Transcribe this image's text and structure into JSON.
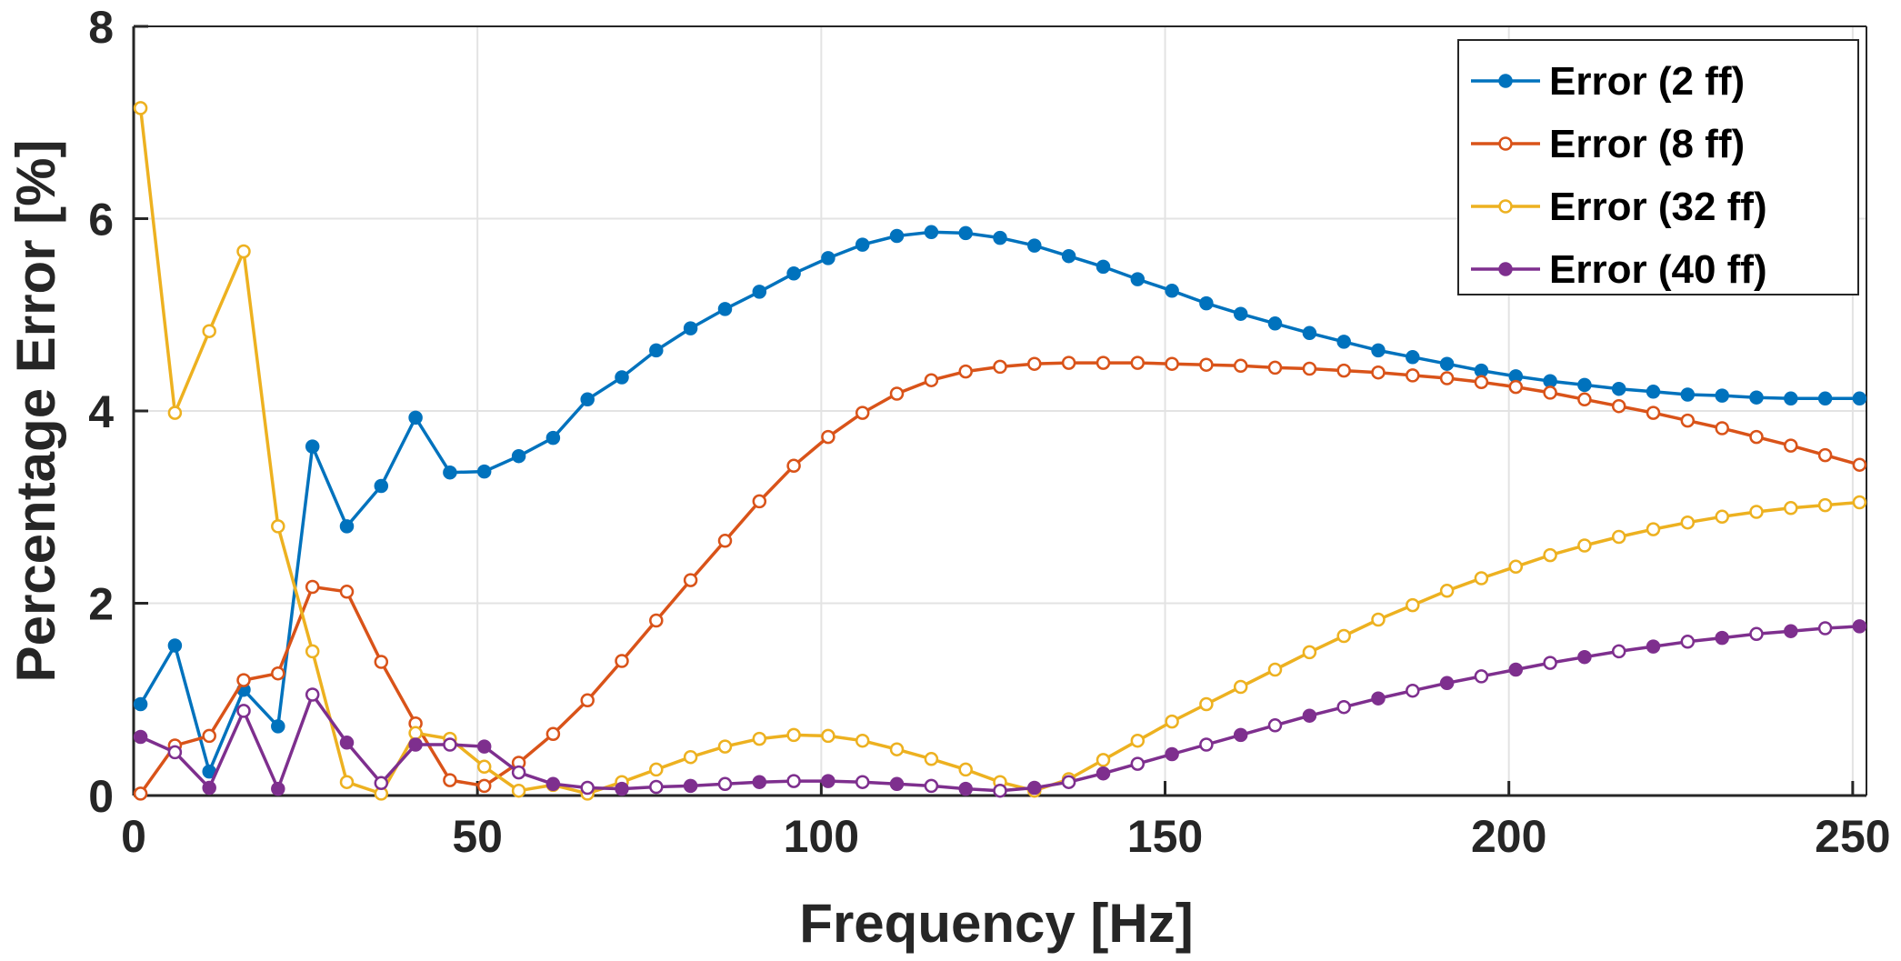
{
  "chart_data": {
    "type": "line",
    "xlabel": "Frequency [Hz]",
    "ylabel": "Percentage Error [%]",
    "xlim": [
      0,
      252
    ],
    "ylim": [
      0,
      8
    ],
    "xticks": [
      0,
      50,
      100,
      150,
      200,
      250
    ],
    "yticks": [
      0,
      2,
      4,
      6,
      8
    ],
    "grid": true,
    "legend_position": "top-right",
    "x": [
      1,
      6,
      11,
      16,
      21,
      26,
      31,
      36,
      41,
      46,
      51,
      56,
      61,
      66,
      71,
      76,
      81,
      86,
      91,
      96,
      101,
      106,
      111,
      116,
      121,
      126,
      131,
      136,
      141,
      146,
      151,
      156,
      161,
      166,
      171,
      176,
      181,
      186,
      191,
      196,
      201,
      206,
      211,
      216,
      221,
      226,
      231,
      236,
      241,
      246,
      251
    ],
    "series": [
      {
        "name": "Error (2 ff)",
        "color": "#0072BD",
        "marker": "filled",
        "values": [
          0.95,
          1.56,
          0.25,
          1.1,
          0.72,
          3.63,
          2.8,
          3.22,
          3.93,
          3.36,
          3.37,
          3.53,
          3.72,
          4.12,
          4.35,
          4.63,
          4.86,
          5.06,
          5.24,
          5.43,
          5.59,
          5.73,
          5.82,
          5.86,
          5.85,
          5.8,
          5.72,
          5.61,
          5.5,
          5.37,
          5.25,
          5.12,
          5.01,
          4.91,
          4.81,
          4.72,
          4.63,
          4.56,
          4.49,
          4.42,
          4.36,
          4.31,
          4.27,
          4.23,
          4.2,
          4.17,
          4.16,
          4.14,
          4.13,
          4.13,
          4.13
        ]
      },
      {
        "name": "Error (8 ff)",
        "color": "#D95319",
        "marker": "open",
        "values": [
          0.02,
          0.52,
          0.62,
          1.2,
          1.27,
          2.17,
          2.12,
          1.39,
          0.75,
          0.16,
          0.1,
          0.34,
          0.64,
          0.99,
          1.4,
          1.82,
          2.24,
          2.65,
          3.06,
          3.43,
          3.73,
          3.98,
          4.18,
          4.32,
          4.41,
          4.46,
          4.49,
          4.5,
          4.5,
          4.5,
          4.49,
          4.48,
          4.47,
          4.45,
          4.44,
          4.42,
          4.4,
          4.37,
          4.34,
          4.3,
          4.25,
          4.19,
          4.12,
          4.05,
          3.98,
          3.9,
          3.82,
          3.73,
          3.64,
          3.54,
          3.44
        ]
      },
      {
        "name": "Error (32 ff)",
        "color": "#EDB120",
        "marker": "open",
        "values": [
          7.15,
          3.98,
          4.83,
          5.66,
          2.8,
          1.5,
          0.14,
          0.02,
          0.65,
          0.59,
          0.3,
          0.05,
          0.11,
          0.02,
          0.14,
          0.27,
          0.4,
          0.51,
          0.59,
          0.63,
          0.62,
          0.57,
          0.48,
          0.38,
          0.27,
          0.14,
          0.05,
          0.17,
          0.37,
          0.57,
          0.77,
          0.95,
          1.13,
          1.31,
          1.49,
          1.66,
          1.83,
          1.98,
          2.13,
          2.26,
          2.38,
          2.5,
          2.6,
          2.69,
          2.77,
          2.84,
          2.9,
          2.95,
          2.99,
          3.02,
          3.05
        ]
      },
      {
        "name": "Error (40 ff)",
        "color": "#7E2F8E",
        "marker": "filled-open",
        "values": [
          0.61,
          0.45,
          0.08,
          0.88,
          0.07,
          1.05,
          0.55,
          0.13,
          0.53,
          0.53,
          0.51,
          0.24,
          0.12,
          0.08,
          0.07,
          0.09,
          0.1,
          0.12,
          0.14,
          0.15,
          0.15,
          0.14,
          0.12,
          0.1,
          0.07,
          0.05,
          0.08,
          0.14,
          0.23,
          0.33,
          0.43,
          0.53,
          0.63,
          0.73,
          0.83,
          0.92,
          1.01,
          1.09,
          1.17,
          1.24,
          1.31,
          1.38,
          1.44,
          1.5,
          1.55,
          1.6,
          1.64,
          1.68,
          1.71,
          1.74,
          1.76
        ]
      }
    ]
  }
}
